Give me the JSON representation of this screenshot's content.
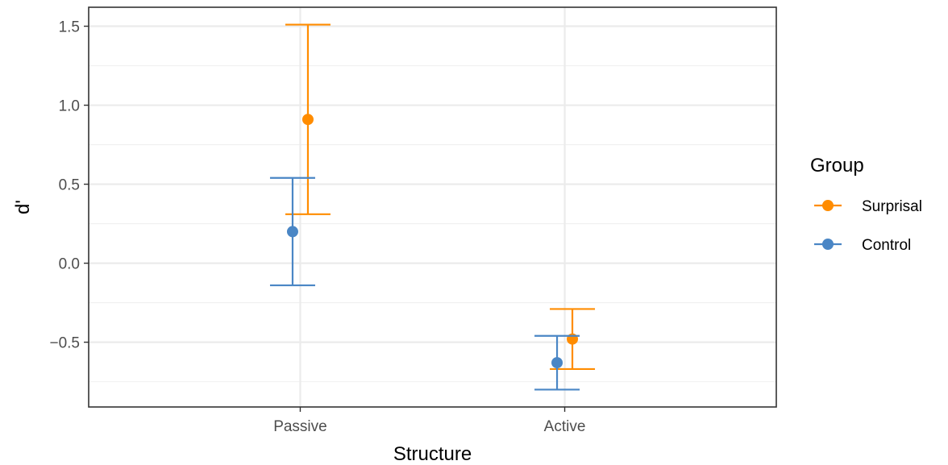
{
  "chart_data": {
    "type": "scatter",
    "subtype": "point-errorbar",
    "xlabel": "Structure",
    "ylabel": "d'",
    "categories": [
      "Passive",
      "Active"
    ],
    "ylim": [
      -0.91,
      1.62
    ],
    "yticks": [
      1.5,
      1.0,
      0.5,
      0.0,
      -0.5
    ],
    "ytick_labels": [
      "1.5",
      "1.0",
      "0.5",
      "0.0",
      "−0.5"
    ],
    "grid": true,
    "legend": {
      "title": "Group",
      "position": "right"
    },
    "series": [
      {
        "name": "Surprisal",
        "color": "#FF8C00",
        "values": [
          0.91,
          -0.48
        ],
        "lower": [
          0.31,
          -0.67
        ],
        "upper": [
          1.51,
          -0.29
        ]
      },
      {
        "name": "Control",
        "color": "#4A86C5",
        "values": [
          0.2,
          -0.63
        ],
        "lower": [
          -0.14,
          -0.8
        ],
        "upper": [
          0.54,
          -0.46
        ]
      }
    ]
  }
}
